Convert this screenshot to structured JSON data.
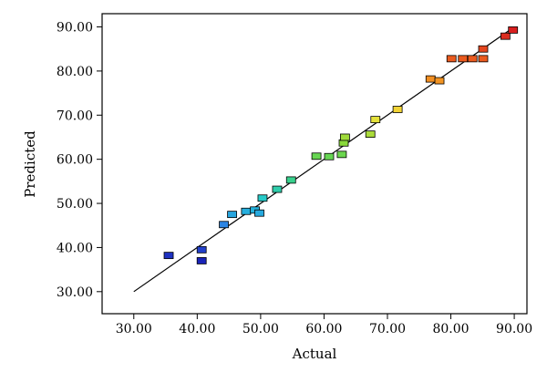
{
  "chart_data": {
    "type": "scatter",
    "title": "",
    "xlabel": "Actual",
    "ylabel": "Predicted",
    "xlim": [
      25,
      92
    ],
    "ylim": [
      25,
      93
    ],
    "x_ticks": [
      "30.00",
      "40.00",
      "50.00",
      "60.00",
      "70.00",
      "80.00",
      "90.00"
    ],
    "y_ticks": [
      "30.00",
      "40.00",
      "50.00",
      "60.00",
      "70.00",
      "80.00",
      "90.00"
    ],
    "x_tick_values": [
      30,
      40,
      50,
      60,
      70,
      80,
      90
    ],
    "y_tick_values": [
      30,
      40,
      50,
      60,
      70,
      80,
      90
    ],
    "reference_line": {
      "from": [
        30,
        30
      ],
      "to": [
        90,
        90
      ],
      "color": "#000000"
    },
    "color_scale": [
      "#1a24b8",
      "#2f6ee8",
      "#22c8d8",
      "#3ed27a",
      "#7fd83a",
      "#f0e23a",
      "#f5a624",
      "#ea5a1e",
      "#d81f1f"
    ],
    "points": [
      {
        "x": 35.5,
        "y": 38.2
      },
      {
        "x": 40.7,
        "y": 39.5
      },
      {
        "x": 40.7,
        "y": 37.0
      },
      {
        "x": 44.2,
        "y": 45.2
      },
      {
        "x": 45.5,
        "y": 47.5
      },
      {
        "x": 47.7,
        "y": 48.2
      },
      {
        "x": 49.1,
        "y": 48.5
      },
      {
        "x": 49.8,
        "y": 47.8
      },
      {
        "x": 50.3,
        "y": 51.2
      },
      {
        "x": 52.6,
        "y": 53.2
      },
      {
        "x": 54.8,
        "y": 55.3
      },
      {
        "x": 58.8,
        "y": 60.7
      },
      {
        "x": 60.8,
        "y": 60.6
      },
      {
        "x": 62.8,
        "y": 61.1
      },
      {
        "x": 63.1,
        "y": 63.7
      },
      {
        "x": 63.3,
        "y": 65.0
      },
      {
        "x": 67.3,
        "y": 65.7
      },
      {
        "x": 68.1,
        "y": 69.0
      },
      {
        "x": 71.6,
        "y": 71.3
      },
      {
        "x": 76.8,
        "y": 78.2
      },
      {
        "x": 78.2,
        "y": 77.8
      },
      {
        "x": 80.1,
        "y": 82.8
      },
      {
        "x": 81.9,
        "y": 82.8
      },
      {
        "x": 83.4,
        "y": 82.8
      },
      {
        "x": 85.1,
        "y": 82.8
      },
      {
        "x": 85.1,
        "y": 85.0
      },
      {
        "x": 88.6,
        "y": 87.9
      },
      {
        "x": 89.8,
        "y": 89.3
      }
    ]
  }
}
